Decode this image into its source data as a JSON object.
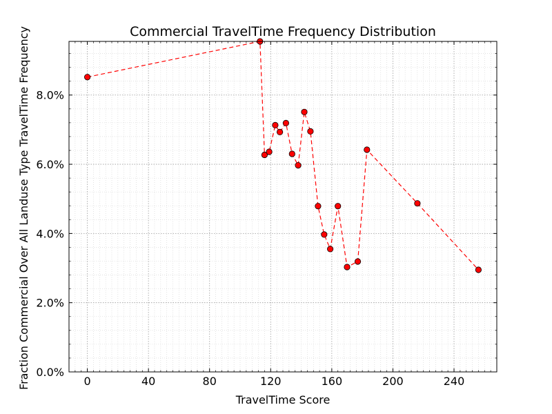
{
  "chart_data": {
    "type": "line",
    "title": "Commercial TravelTime Frequency Distribution",
    "xlabel": "TravelTime Score",
    "ylabel": "Fraction Commercial Over All Landuse Type TravelTime Frequency",
    "xlim": [
      -12,
      268
    ],
    "ylim": [
      0,
      9.55
    ],
    "x_ticks": [
      0,
      40,
      80,
      120,
      160,
      200,
      240
    ],
    "y_ticks": [
      0,
      2,
      4,
      6,
      8
    ],
    "y_tick_labels": [
      "0.0%",
      "2.0%",
      "4.0%",
      "6.0%",
      "8.0%"
    ],
    "grid": true,
    "series": [
      {
        "color": "#ff0000",
        "line_style": "dashed",
        "marker": "circle",
        "x": [
          0,
          113,
          116,
          119,
          123,
          126,
          130,
          134,
          138,
          142,
          146,
          151,
          155,
          159,
          164,
          170,
          177,
          183,
          216,
          256
        ],
        "y": [
          8.52,
          9.55,
          6.27,
          6.36,
          7.13,
          6.93,
          7.19,
          6.3,
          5.97,
          7.51,
          6.95,
          4.79,
          3.97,
          3.55,
          4.79,
          3.03,
          3.19,
          6.42,
          4.87,
          2.95
        ]
      }
    ]
  }
}
